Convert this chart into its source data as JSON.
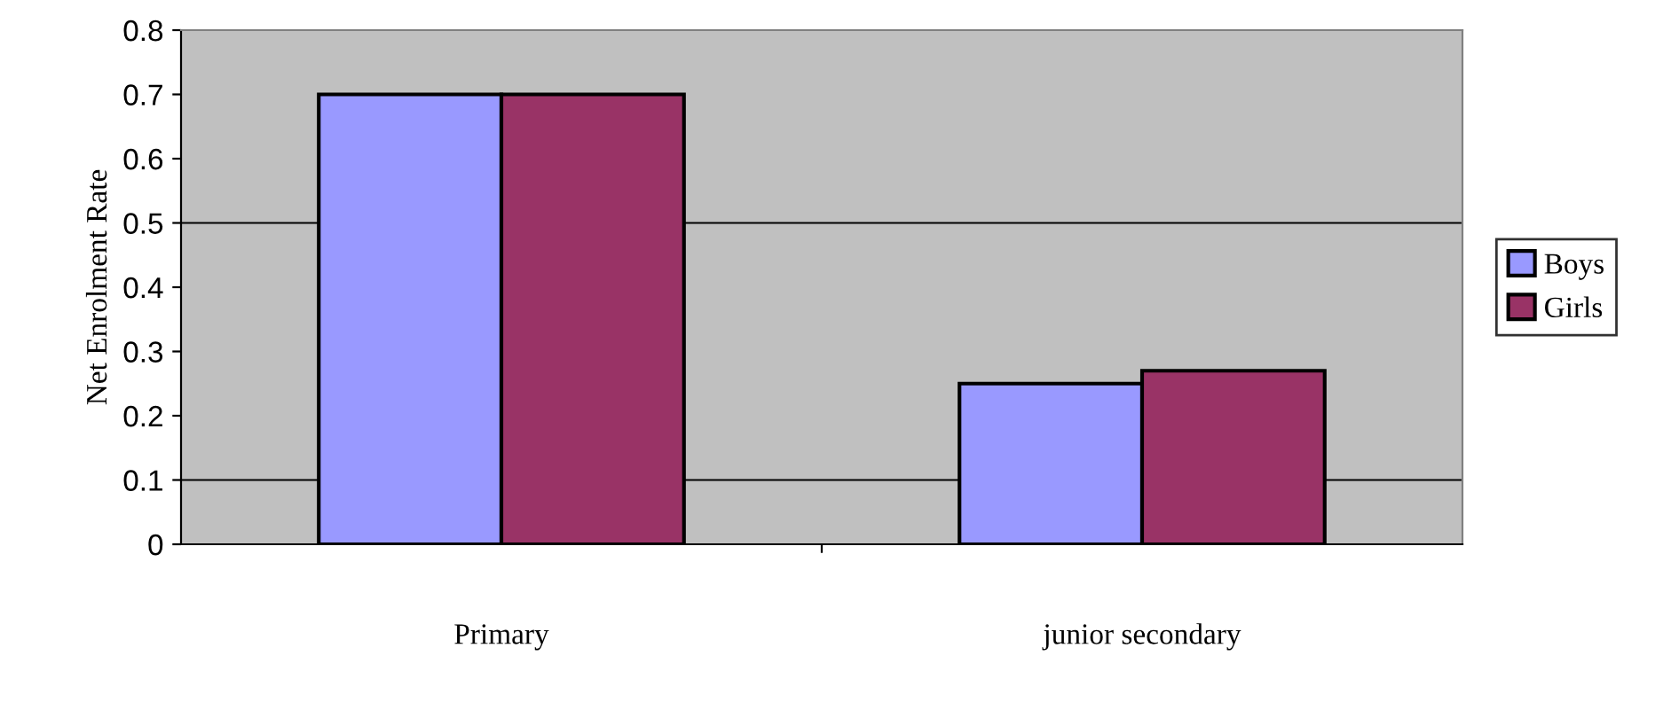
{
  "chart_data": {
    "type": "bar",
    "ylabel": "Net Enrolment Rate",
    "categories": [
      "Primary",
      "junior secondary"
    ],
    "series": [
      {
        "name": "Boys",
        "color": "#9999ff",
        "values": [
          0.7,
          0.25
        ]
      },
      {
        "name": "Girls",
        "color": "#993366",
        "values": [
          0.7,
          0.27
        ]
      }
    ],
    "ylim": [
      0,
      0.8
    ],
    "yticks": [
      0,
      0.1,
      0.2,
      0.3,
      0.4,
      0.5,
      0.6,
      0.7,
      0.8
    ],
    "grid": false,
    "ref_lines": [
      {
        "axis": "y",
        "value": 0.1,
        "color": "#000000"
      },
      {
        "axis": "y",
        "value": 0.5,
        "color": "#000000"
      }
    ],
    "legend": "right"
  }
}
